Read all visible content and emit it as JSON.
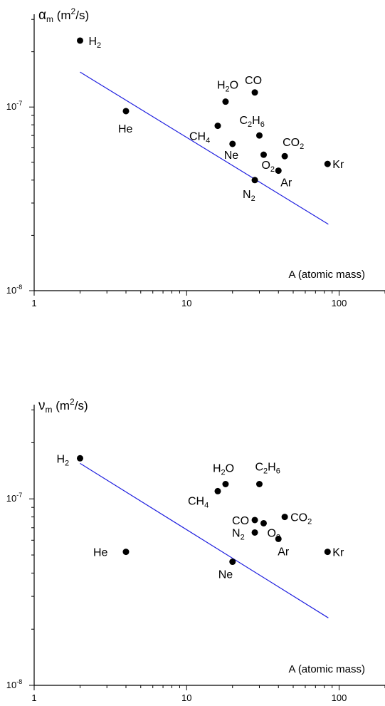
{
  "chart_data": [
    {
      "type": "scatter",
      "ylabel": {
        "sym": "α",
        "sub": "m",
        "units_pre": "(m",
        "units_sup": "2",
        "units_post": "/s)"
      },
      "xlabel": "A (atomic mass)",
      "xscale": "log",
      "yscale": "log",
      "xlim": [
        1,
        200
      ],
      "ylim": [
        1e-08,
        3.2e-07
      ],
      "x_ticks": [
        "1",
        "10",
        "100"
      ],
      "y_ticks": [
        {
          "base": "10",
          "exp": "-8"
        },
        {
          "base": "10",
          "exp": "-7"
        }
      ],
      "grid": false,
      "fit_line": {
        "color": "#1f1fdf",
        "x": [
          2,
          85
        ],
        "y": [
          1.55e-07,
          2.3e-08
        ]
      },
      "points": [
        {
          "x": 2,
          "y": 2.3e-07,
          "label": {
            "main": "H",
            "sub": "2"
          }
        },
        {
          "x": 4,
          "y": 9.5e-08,
          "label": {
            "main": "He"
          }
        },
        {
          "x": 18,
          "y": 1.07e-07,
          "label": {
            "pre": "H",
            "sub": "2",
            "post": "O"
          }
        },
        {
          "x": 28,
          "y": 1.2e-07,
          "label": {
            "main": "CO"
          }
        },
        {
          "x": 16,
          "y": 7.9e-08,
          "label": {
            "pre": "CH",
            "sub": "4"
          }
        },
        {
          "x": 30,
          "y": 7e-08,
          "label": {
            "pre": "C",
            "sub": "2",
            "post": "H",
            "sub2": "6"
          }
        },
        {
          "x": 20,
          "y": 6.3e-08,
          "label": {
            "main": "Ne"
          }
        },
        {
          "x": 32,
          "y": 5.5e-08,
          "label": {
            "pre": "O",
            "sub": "2"
          }
        },
        {
          "x": 44,
          "y": 5.4e-08,
          "label": {
            "pre": "CO",
            "sub": "2"
          }
        },
        {
          "x": 40,
          "y": 4.5e-08,
          "label": {
            "main": "Ar"
          }
        },
        {
          "x": 84,
          "y": 4.9e-08,
          "label": {
            "main": "Kr"
          }
        },
        {
          "x": 28,
          "y": 4e-08,
          "label": {
            "pre": "N",
            "sub": "2"
          }
        }
      ]
    },
    {
      "type": "scatter",
      "ylabel": {
        "sym": "ν",
        "sub": "m",
        "units_pre": "(m",
        "units_sup": "2",
        "units_post": "/s)"
      },
      "xlabel": "A (atomic mass)",
      "xscale": "log",
      "yscale": "log",
      "xlim": [
        1,
        200
      ],
      "ylim": [
        1e-08,
        3.2e-07
      ],
      "x_ticks": [
        "1",
        "10",
        "100"
      ],
      "y_ticks": [
        {
          "base": "10",
          "exp": "-8"
        },
        {
          "base": "10",
          "exp": "-7"
        }
      ],
      "grid": false,
      "fit_line": {
        "color": "#1f1fdf",
        "x": [
          2,
          85
        ],
        "y": [
          1.55e-07,
          2.3e-08
        ]
      },
      "points": [
        {
          "x": 2,
          "y": 1.65e-07,
          "label": {
            "pre": "H",
            "sub": "2"
          }
        },
        {
          "x": 4,
          "y": 5.2e-08,
          "label": {
            "main": "He"
          }
        },
        {
          "x": 18,
          "y": 1.2e-07,
          "label": {
            "pre": "H",
            "sub": "2",
            "post": "O"
          }
        },
        {
          "x": 16,
          "y": 1.1e-07,
          "label": {
            "pre": "CH",
            "sub": "4"
          }
        },
        {
          "x": 30,
          "y": 1.2e-07,
          "label": {
            "pre": "C",
            "sub": "2",
            "post": "H",
            "sub2": "6"
          }
        },
        {
          "x": 28,
          "y": 7.7e-08,
          "label": {
            "main": "CO"
          }
        },
        {
          "x": 44,
          "y": 8e-08,
          "label": {
            "pre": "CO",
            "sub": "2"
          }
        },
        {
          "x": 32,
          "y": 7.4e-08,
          "label": {
            "pre": "O",
            "sub": "2"
          }
        },
        {
          "x": 28,
          "y": 6.6e-08,
          "label": {
            "pre": "N",
            "sub": "2"
          }
        },
        {
          "x": 40,
          "y": 6.1e-08,
          "label": {
            "main": "Ar"
          }
        },
        {
          "x": 84,
          "y": 5.2e-08,
          "label": {
            "main": "Kr"
          }
        },
        {
          "x": 20,
          "y": 4.6e-08,
          "label": {
            "main": "Ne"
          }
        }
      ]
    }
  ]
}
